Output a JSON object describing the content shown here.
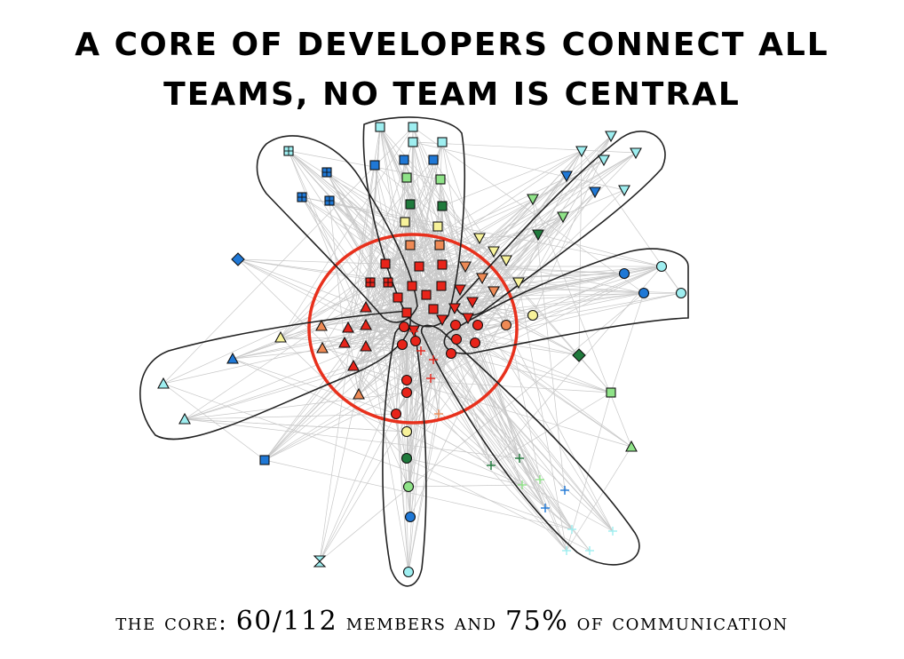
{
  "title": {
    "line1": "A CORE OF DEVELOPERS CONNECT ALL",
    "line2": "TEAMS, NO TEAM IS CENTRAL"
  },
  "caption": {
    "prefix": "the core:",
    "members_value": "60/112",
    "members_text": "members and",
    "comm_value": "75%",
    "comm_text": "of communication"
  },
  "colors": {
    "core_outline": "#e8301c",
    "team_outline": "#222222",
    "edge": "#c8c8c8",
    "red": "#e8241a",
    "orange": "#ee8a55",
    "yellow": "#f7f29a",
    "light_green": "#8fe388",
    "dark_green": "#1f7a3c",
    "blue": "#1f78d6",
    "cyan": "#9eeef0"
  }
}
